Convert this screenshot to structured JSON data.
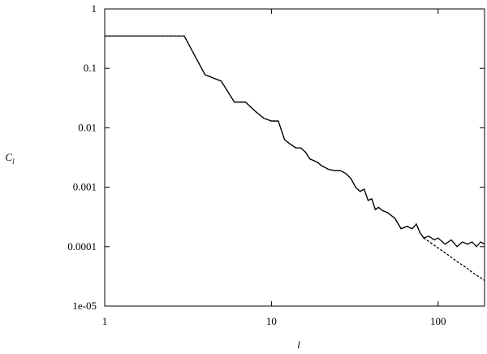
{
  "chart_data": {
    "type": "line",
    "xlabel": "l",
    "ylabel": {
      "text": "C",
      "subscript": "l"
    },
    "log_x": true,
    "log_y": true,
    "xlim": [
      1,
      190
    ],
    "ylim": [
      1e-05,
      1
    ],
    "xticks": [
      1,
      10,
      100
    ],
    "yticks": [
      1,
      0.1,
      0.01,
      0.001,
      0.0001,
      {
        "value": 1e-05,
        "label": "1e-05"
      }
    ],
    "x": [
      1,
      2,
      3,
      4,
      5,
      6,
      7,
      8,
      9,
      10,
      11,
      12,
      13,
      14,
      15,
      16,
      17,
      18,
      19,
      20,
      22,
      24,
      26,
      28,
      30,
      32,
      34,
      36,
      38,
      40,
      42,
      44,
      46,
      50,
      55,
      60,
      65,
      70,
      74,
      78,
      82,
      88,
      95,
      100,
      110,
      120,
      130,
      140,
      150,
      160,
      170,
      180,
      190
    ],
    "series": [
      {
        "color": "#000000",
        "style": "solid",
        "values": [
          0.35,
          0.35,
          0.35,
          0.078,
          0.061,
          0.027,
          0.027,
          0.019,
          0.0145,
          0.013,
          0.013,
          0.0063,
          0.0053,
          0.0046,
          0.0046,
          0.0039,
          0.003,
          0.0028,
          0.0026,
          0.0023,
          0.002,
          0.0019,
          0.0019,
          0.0017,
          0.0014,
          0.001,
          0.00085,
          0.00093,
          0.0006,
          0.00064,
          0.00042,
          0.00046,
          0.00041,
          0.00037,
          0.0003,
          0.0002,
          0.00022,
          0.0002,
          0.00024,
          0.00017,
          0.00014,
          0.00015,
          0.00013,
          0.00014,
          0.00011,
          0.00013,
          0.0001,
          0.00012,
          0.00011,
          0.00012,
          0.0001,
          0.00012,
          0.00011
        ]
      },
      {
        "color": "#000000",
        "style": "dashed",
        "values": [
          0.35,
          0.35,
          0.35,
          0.078,
          0.061,
          0.027,
          0.027,
          0.019,
          0.0145,
          0.013,
          0.013,
          0.0063,
          0.0053,
          0.0046,
          0.0046,
          0.0039,
          0.003,
          0.0028,
          0.0026,
          0.0023,
          0.002,
          0.0019,
          0.0019,
          0.0017,
          0.0014,
          0.001,
          0.00085,
          0.00093,
          0.0006,
          0.00064,
          0.00042,
          0.00046,
          0.00041,
          0.00037,
          0.0003,
          0.0002,
          0.00022,
          0.0002,
          0.00024,
          0.00017,
          0.00014,
          0.000122,
          0.000105,
          9.5e-05,
          7.9e-05,
          6.6e-05,
          5.6e-05,
          4.9e-05,
          4.3e-05,
          3.7e-05,
          3.3e-05,
          3e-05,
          2.7e-05
        ]
      }
    ]
  }
}
